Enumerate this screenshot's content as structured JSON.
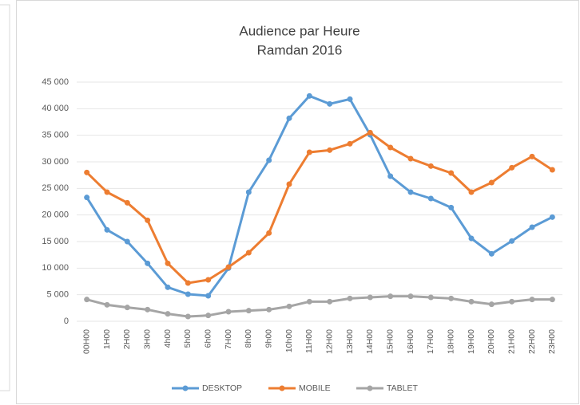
{
  "chart_data": {
    "type": "line",
    "title": "Audience par Heure",
    "subtitle": "Ramdan 2016",
    "categories": [
      "00H00",
      "1H00",
      "2H00",
      "3H00",
      "4h00",
      "5h00",
      "6h00",
      "7H00",
      "8h00",
      "9h00",
      "10h00",
      "11H00",
      "12H00",
      "13H00",
      "14H00",
      "15H00",
      "16H00",
      "17H00",
      "18H00",
      "19H00",
      "20H00",
      "21H00",
      "22H00",
      "23H00"
    ],
    "series": [
      {
        "name": "DESKTOP",
        "color": "#5b9bd5",
        "values": [
          23300,
          17200,
          15000,
          10900,
          6400,
          5100,
          4800,
          10000,
          24300,
          30300,
          38200,
          42400,
          40900,
          41800,
          35100,
          27300,
          24300,
          23100,
          21400,
          15600,
          12700,
          15100,
          17700,
          19600
        ]
      },
      {
        "name": "MOBILE",
        "color": "#ed7d31",
        "values": [
          28000,
          24300,
          22300,
          19000,
          10900,
          7200,
          7800,
          10200,
          12900,
          16600,
          25800,
          31800,
          32200,
          33400,
          35500,
          32700,
          30600,
          29200,
          27900,
          24300,
          26100,
          28900,
          31000,
          28500
        ]
      },
      {
        "name": "TABLET",
        "color": "#a5a5a5",
        "values": [
          4100,
          3100,
          2600,
          2200,
          1400,
          900,
          1100,
          1800,
          2000,
          2200,
          2800,
          3700,
          3700,
          4300,
          4500,
          4700,
          4700,
          4500,
          4300,
          3700,
          3200,
          3700,
          4100,
          4100
        ]
      }
    ],
    "ylim": [
      0,
      45000
    ],
    "yticks": [
      0,
      {
        "value": 5000,
        "label": "5 000"
      },
      {
        "value": 10000,
        "label": "10 000"
      },
      {
        "value": 15000,
        "label": "15 000"
      },
      {
        "value": 20000,
        "label": "20 000"
      },
      {
        "value": 25000,
        "label": "25 000"
      },
      {
        "value": 30000,
        "label": "30 000"
      },
      {
        "value": 35000,
        "label": "35 000"
      },
      {
        "value": 40000,
        "label": "40 000"
      },
      {
        "value": 45000,
        "label": "45 000"
      }
    ],
    "grid": true,
    "legend": "bottom"
  }
}
